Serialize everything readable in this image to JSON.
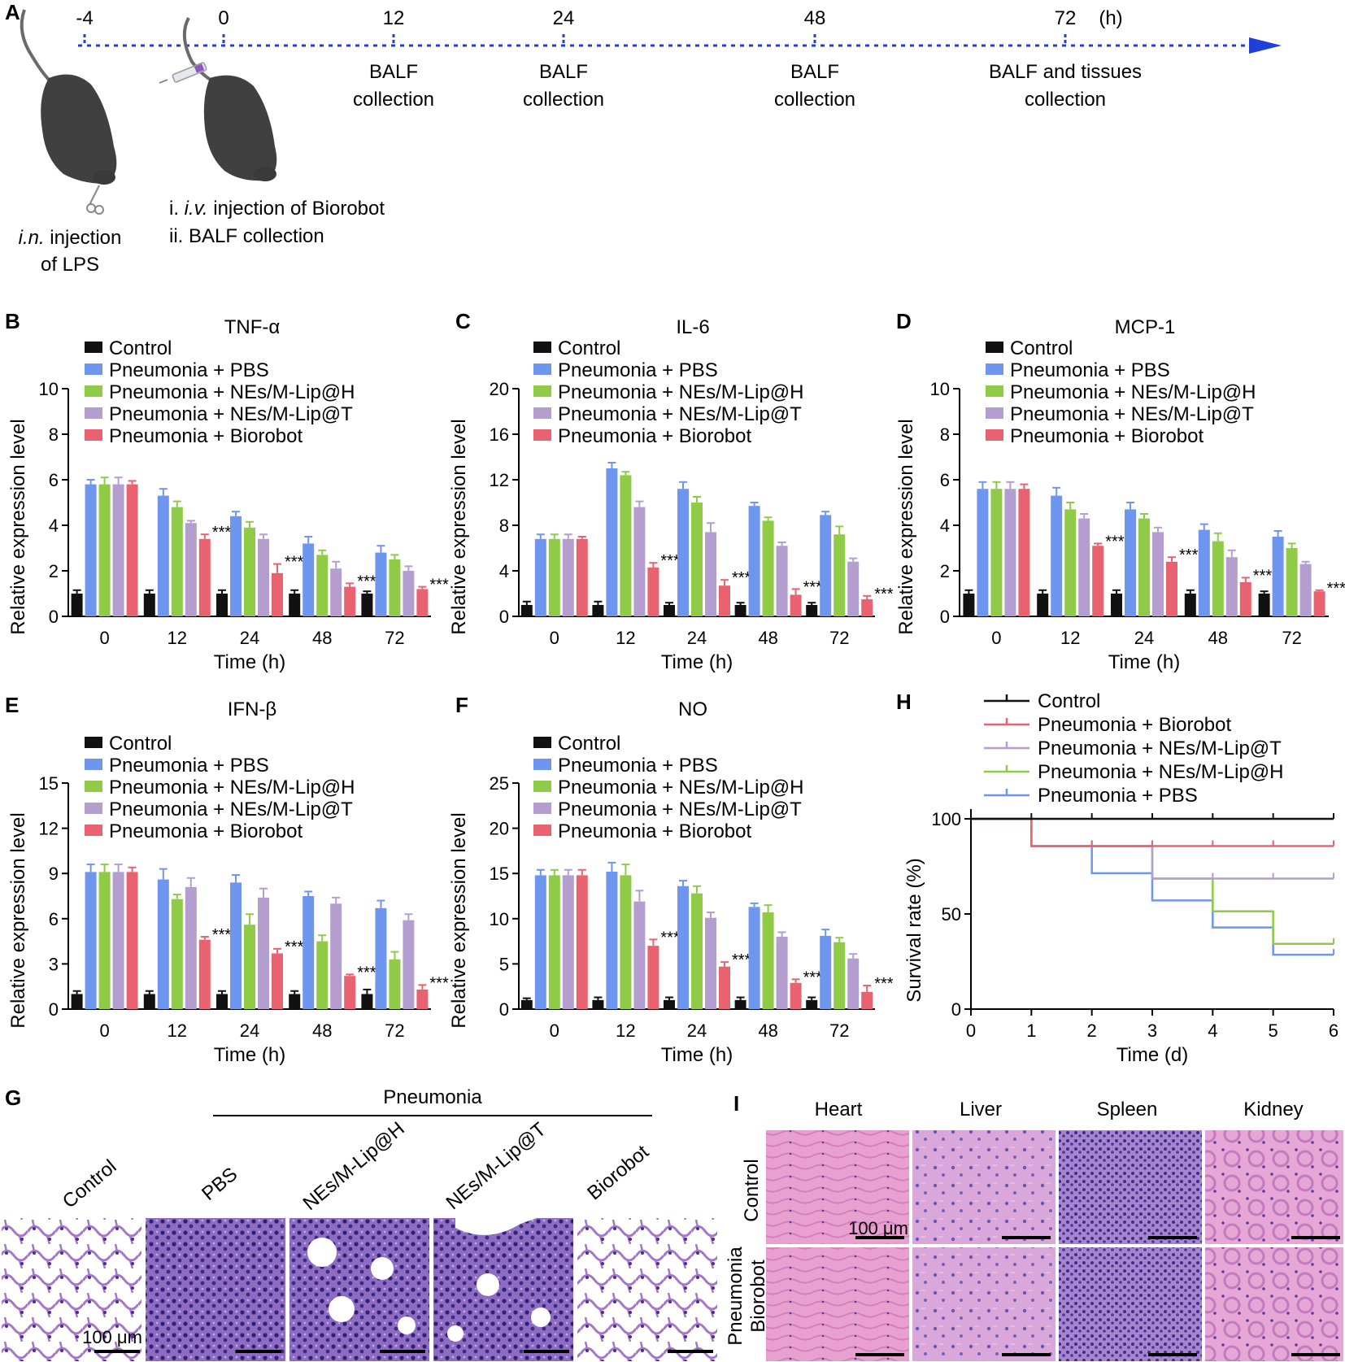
{
  "panel_letters": {
    "A": "A",
    "B": "B",
    "C": "C",
    "D": "D",
    "E": "E",
    "F": "F",
    "G": "G",
    "H": "H",
    "I": "I"
  },
  "colors": {
    "Control": "#111111",
    "Pneumonia + PBS": "#6e96ee",
    "Pneumonia + NEs/M-Lip@H": "#8fcb47",
    "Pneumonia + NEs/M-Lip@T": "#b49ed0",
    "Pneumonia + Biorobot": "#e8636f",
    "timeline": "#1f3fd6"
  },
  "timeline": {
    "times": [
      "-4",
      "0",
      "12",
      "24",
      "48",
      "72"
    ],
    "unit": "(h)",
    "events": [
      {
        "line1": "BALF",
        "line2": "collection"
      },
      {
        "line1": "BALF",
        "line2": "collection"
      },
      {
        "line1": "BALF",
        "line2": "collection"
      },
      {
        "line1": "BALF and tissues",
        "line2": "collection"
      }
    ],
    "step1_line1_italic": "i.n.",
    "step1_line1_rest": " injection",
    "step1_line2": "of LPS",
    "step2_line1_prefix": "i. ",
    "step2_line1_italic": "i.v.",
    "step2_line1_rest": " injection of Biorobot",
    "step2_line2": "ii. BALF collection"
  },
  "chart_data": [
    {
      "panel": "B",
      "type": "bar",
      "title": "TNF-α",
      "xlabel": "Time (h)",
      "ylabel": "Relative expression level",
      "categories": [
        "0",
        "12",
        "24",
        "48",
        "72"
      ],
      "ylim": [
        0,
        10
      ],
      "yticks": [
        "0",
        "2",
        "4",
        "6",
        "8",
        "10"
      ],
      "series": [
        {
          "name": "Control",
          "values": [
            1.0,
            1.0,
            1.0,
            1.0,
            1.0
          ],
          "err": [
            0.15,
            0.15,
            0.15,
            0.15,
            0.1
          ]
        },
        {
          "name": "Pneumonia + PBS",
          "values": [
            5.8,
            5.3,
            4.4,
            3.2,
            2.8
          ],
          "err": [
            0.2,
            0.3,
            0.2,
            0.3,
            0.3
          ]
        },
        {
          "name": "Pneumonia + NEs/M-Lip@H",
          "values": [
            5.8,
            4.8,
            3.9,
            2.7,
            2.5
          ],
          "err": [
            0.3,
            0.25,
            0.25,
            0.2,
            0.2
          ]
        },
        {
          "name": "Pneumonia + NEs/M-Lip@T",
          "values": [
            5.8,
            4.1,
            3.4,
            2.1,
            2.0
          ],
          "err": [
            0.3,
            0.1,
            0.2,
            0.3,
            0.2
          ]
        },
        {
          "name": "Pneumonia + Biorobot",
          "values": [
            5.8,
            3.4,
            1.9,
            1.3,
            1.2
          ],
          "err": [
            0.15,
            0.2,
            0.4,
            0.15,
            0.1
          ]
        }
      ],
      "sig": [
        "",
        "***",
        "***",
        "***",
        "***"
      ]
    },
    {
      "panel": "C",
      "type": "bar",
      "title": "IL-6",
      "xlabel": "Time (h)",
      "ylabel": "Relative expression level",
      "categories": [
        "0",
        "12",
        "24",
        "48",
        "72"
      ],
      "ylim": [
        0,
        20
      ],
      "yticks": [
        "0",
        "4",
        "8",
        "12",
        "16",
        "20"
      ],
      "series": [
        {
          "name": "Control",
          "values": [
            1.0,
            1.0,
            1.0,
            1.0,
            1.0
          ],
          "err": [
            0.3,
            0.3,
            0.2,
            0.2,
            0.2
          ]
        },
        {
          "name": "Pneumonia + PBS",
          "values": [
            6.8,
            13.0,
            11.2,
            9.7,
            8.9
          ],
          "err": [
            0.4,
            0.5,
            0.6,
            0.3,
            0.3
          ]
        },
        {
          "name": "Pneumonia + NEs/M-Lip@H",
          "values": [
            6.8,
            12.4,
            10.0,
            8.4,
            7.2
          ],
          "err": [
            0.4,
            0.3,
            0.5,
            0.3,
            0.7
          ]
        },
        {
          "name": "Pneumonia + NEs/M-Lip@T",
          "values": [
            6.8,
            9.6,
            7.4,
            6.2,
            4.8
          ],
          "err": [
            0.4,
            0.5,
            0.8,
            0.3,
            0.3
          ]
        },
        {
          "name": "Pneumonia + Biorobot",
          "values": [
            6.8,
            4.3,
            2.7,
            1.9,
            1.5
          ],
          "err": [
            0.2,
            0.4,
            0.5,
            0.5,
            0.3
          ]
        }
      ],
      "sig": [
        "",
        "***",
        "***",
        "***",
        "***"
      ]
    },
    {
      "panel": "D",
      "type": "bar",
      "title": "MCP-1",
      "xlabel": "Time (h)",
      "ylabel": "Relative expression level",
      "categories": [
        "0",
        "12",
        "24",
        "48",
        "72"
      ],
      "ylim": [
        0,
        10
      ],
      "yticks": [
        "0",
        "2",
        "4",
        "6",
        "8",
        "10"
      ],
      "series": [
        {
          "name": "Control",
          "values": [
            1.0,
            1.0,
            1.0,
            1.0,
            1.0
          ],
          "err": [
            0.15,
            0.15,
            0.15,
            0.15,
            0.1
          ]
        },
        {
          "name": "Pneumonia + PBS",
          "values": [
            5.6,
            5.3,
            4.7,
            3.8,
            3.5
          ],
          "err": [
            0.3,
            0.35,
            0.3,
            0.25,
            0.25
          ]
        },
        {
          "name": "Pneumonia + NEs/M-Lip@H",
          "values": [
            5.6,
            4.7,
            4.3,
            3.3,
            3.0
          ],
          "err": [
            0.3,
            0.3,
            0.2,
            0.35,
            0.2
          ]
        },
        {
          "name": "Pneumonia + NEs/M-Lip@T",
          "values": [
            5.6,
            4.3,
            3.7,
            2.6,
            2.3
          ],
          "err": [
            0.3,
            0.2,
            0.2,
            0.3,
            0.1
          ]
        },
        {
          "name": "Pneumonia + Biorobot",
          "values": [
            5.6,
            3.1,
            2.4,
            1.5,
            1.1
          ],
          "err": [
            0.2,
            0.1,
            0.2,
            0.2,
            0.05
          ]
        }
      ],
      "sig": [
        "",
        "***",
        "***",
        "***",
        "***"
      ]
    },
    {
      "panel": "E",
      "type": "bar",
      "title": "IFN-β",
      "xlabel": "Time (h)",
      "ylabel": "Relative expression level",
      "categories": [
        "0",
        "12",
        "24",
        "48",
        "72"
      ],
      "ylim": [
        0,
        15
      ],
      "yticks": [
        "0",
        "3",
        "6",
        "9",
        "12",
        "15"
      ],
      "series": [
        {
          "name": "Control",
          "values": [
            1.0,
            1.0,
            1.0,
            1.0,
            1.0
          ],
          "err": [
            0.2,
            0.2,
            0.2,
            0.2,
            0.3
          ]
        },
        {
          "name": "Pneumonia + PBS",
          "values": [
            9.1,
            8.6,
            8.4,
            7.5,
            6.7
          ],
          "err": [
            0.5,
            0.7,
            0.5,
            0.3,
            0.5
          ]
        },
        {
          "name": "Pneumonia + NEs/M-Lip@H",
          "values": [
            9.1,
            7.3,
            5.6,
            4.5,
            3.3
          ],
          "err": [
            0.5,
            0.3,
            0.7,
            0.4,
            0.5
          ]
        },
        {
          "name": "Pneumonia + NEs/M-Lip@T",
          "values": [
            9.1,
            8.1,
            7.4,
            7.0,
            5.9
          ],
          "err": [
            0.5,
            0.6,
            0.6,
            0.4,
            0.4
          ]
        },
        {
          "name": "Pneumonia + Biorobot",
          "values": [
            9.1,
            4.6,
            3.7,
            2.2,
            1.3
          ],
          "err": [
            0.3,
            0.2,
            0.3,
            0.1,
            0.3
          ]
        }
      ],
      "sig": [
        "",
        "***",
        "***",
        "***",
        "***"
      ]
    },
    {
      "panel": "F",
      "type": "bar",
      "title": "NO",
      "xlabel": "Time (h)",
      "ylabel": "Relative expression level",
      "categories": [
        "0",
        "12",
        "24",
        "48",
        "72"
      ],
      "ylim": [
        0,
        25
      ],
      "yticks": [
        "0",
        "5",
        "10",
        "15",
        "20",
        "25"
      ],
      "series": [
        {
          "name": "Control",
          "values": [
            1.0,
            1.0,
            1.0,
            1.0,
            1.0
          ],
          "err": [
            0.2,
            0.3,
            0.3,
            0.3,
            0.3
          ]
        },
        {
          "name": "Pneumonia + PBS",
          "values": [
            14.8,
            15.2,
            13.6,
            11.3,
            8.1
          ],
          "err": [
            0.6,
            1.0,
            0.6,
            0.4,
            0.7
          ]
        },
        {
          "name": "Pneumonia + NEs/M-Lip@H",
          "values": [
            14.8,
            14.8,
            12.8,
            10.7,
            7.4
          ],
          "err": [
            0.6,
            1.2,
            0.8,
            0.8,
            0.5
          ]
        },
        {
          "name": "Pneumonia + NEs/M-Lip@T",
          "values": [
            14.8,
            11.9,
            10.1,
            8.0,
            5.6
          ],
          "err": [
            0.6,
            1.2,
            0.6,
            0.5,
            0.5
          ]
        },
        {
          "name": "Pneumonia + Biorobot",
          "values": [
            14.8,
            7.0,
            4.7,
            2.9,
            1.9
          ],
          "err": [
            0.6,
            0.7,
            0.5,
            0.4,
            0.7
          ]
        }
      ],
      "sig": [
        "",
        "***",
        "***",
        "***",
        "***"
      ]
    },
    {
      "panel": "H",
      "type": "line",
      "step": true,
      "xlabel": "Time (d)",
      "ylabel": "Survival rate (%)",
      "xlim": [
        0,
        6
      ],
      "ylim": [
        0,
        100
      ],
      "xticks": [
        "0",
        "1",
        "2",
        "3",
        "4",
        "5",
        "6"
      ],
      "yticks": [
        "0",
        "50",
        "100"
      ],
      "series": [
        {
          "name": "Control",
          "x": [
            0,
            6
          ],
          "y": [
            100,
            100
          ]
        },
        {
          "name": "Pneumonia + Biorobot",
          "x": [
            0,
            1,
            6
          ],
          "y": [
            100,
            85.7,
            85.7
          ]
        },
        {
          "name": "Pneumonia + NEs/M-Lip@T",
          "x": [
            0,
            1,
            3,
            6
          ],
          "y": [
            100,
            85.7,
            68.6,
            68.6
          ]
        },
        {
          "name": "Pneumonia + NEs/M-Lip@H",
          "x": [
            0,
            1,
            3,
            4,
            5,
            6
          ],
          "y": [
            100,
            85.7,
            68.6,
            51.4,
            34.3,
            34.3
          ]
        },
        {
          "name": "Pneumonia + PBS",
          "x": [
            0,
            1,
            2,
            3,
            4,
            5,
            6
          ],
          "y": [
            100,
            85.7,
            71.4,
            57.1,
            42.9,
            28.6,
            28.6
          ]
        }
      ],
      "censor_ticks_at": [
        1,
        2,
        3,
        4,
        5,
        6
      ]
    }
  ],
  "histology_G": {
    "header": "Pneumonia",
    "labels": [
      "Control",
      "PBS",
      "NEs/M-Lip@H",
      "NEs/M-Lip@T",
      "Biorobot"
    ],
    "scale": "100 μm"
  },
  "histology_I": {
    "columns": [
      "Heart",
      "Liver",
      "Spleen",
      "Kidney"
    ],
    "row1": "Control",
    "row2_line1": "Pneumonia",
    "row2_line2": "Biorobot",
    "scale": "100 μm"
  }
}
